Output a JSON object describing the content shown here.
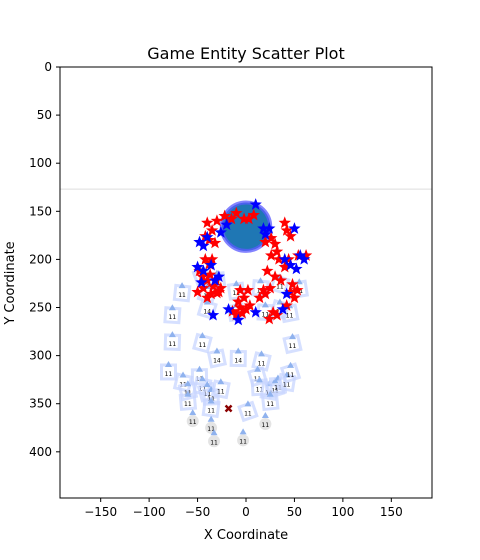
{
  "chart_data": {
    "type": "scatter",
    "title": "Game Entity Scatter Plot",
    "xlabel": "X Coordinate",
    "ylabel": "Y Coordinate",
    "xlim": [
      -192,
      192
    ],
    "ylim": [
      448,
      0
    ],
    "y_inverted": true,
    "grid": false,
    "xticks": [
      -150,
      -100,
      -50,
      0,
      50,
      100,
      150
    ],
    "yticks": [
      0,
      50,
      100,
      150,
      200,
      250,
      300,
      350,
      400
    ],
    "horizontal_reference_line": {
      "y": 127,
      "color": "#dddddd"
    },
    "colors": {
      "red_star": "#ff0000",
      "blue_star": "#0000ff",
      "big_circle_fill": "#1f77b4",
      "big_circle_ring": "#5a5aff",
      "marker": "#8b0000",
      "unit_square": "#c8d6ff",
      "unit_triangle": "#8fb2ee",
      "unit_circle": "#dddddd"
    },
    "big_circle": {
      "x": 0,
      "y": 166,
      "r": 25
    },
    "x_marker": {
      "x": -18,
      "y": 355
    },
    "red_stars": [
      [
        -40,
        162
      ],
      [
        -30,
        160
      ],
      [
        -22,
        155
      ],
      [
        -15,
        158
      ],
      [
        -10,
        152
      ],
      [
        -2,
        158
      ],
      [
        3,
        158
      ],
      [
        8,
        154
      ],
      [
        -35,
        170
      ],
      [
        -42,
        176
      ],
      [
        -38,
        180
      ],
      [
        -32,
        183
      ],
      [
        -48,
        212
      ],
      [
        -45,
        218
      ],
      [
        -40,
        222
      ],
      [
        -37,
        216
      ],
      [
        -34,
        228
      ],
      [
        -31,
        222
      ],
      [
        -28,
        234
      ],
      [
        -44,
        230
      ],
      [
        -50,
        234
      ],
      [
        -36,
        236
      ],
      [
        -26,
        230
      ],
      [
        -40,
        240
      ],
      [
        -35,
        200
      ],
      [
        -38,
        205
      ],
      [
        -30,
        235
      ],
      [
        -42,
        200
      ],
      [
        26,
        178
      ],
      [
        30,
        184
      ],
      [
        20,
        182
      ],
      [
        32,
        192
      ],
      [
        26,
        196
      ],
      [
        34,
        200
      ],
      [
        22,
        212
      ],
      [
        30,
        218
      ],
      [
        36,
        222
      ],
      [
        25,
        230
      ],
      [
        18,
        232
      ],
      [
        14,
        240
      ],
      [
        20,
        236
      ],
      [
        40,
        162
      ],
      [
        42,
        170
      ],
      [
        46,
        176
      ],
      [
        44,
        200
      ],
      [
        40,
        208
      ],
      [
        54,
        196
      ],
      [
        62,
        196
      ],
      [
        48,
        226
      ],
      [
        46,
        234
      ],
      [
        50,
        240
      ],
      [
        53,
        232
      ],
      [
        42,
        248
      ],
      [
        -6,
        232
      ],
      [
        -2,
        240
      ],
      [
        2,
        232
      ],
      [
        -8,
        244
      ],
      [
        -6,
        250
      ],
      [
        -4,
        256
      ],
      [
        0,
        252
      ],
      [
        -10,
        258
      ],
      [
        -14,
        254
      ],
      [
        4,
        248
      ],
      [
        28,
        255
      ],
      [
        32,
        258
      ],
      [
        24,
        262
      ]
    ],
    "blue_stars": [
      [
        -48,
        182
      ],
      [
        -44,
        186
      ],
      [
        -40,
        177
      ],
      [
        -26,
        172
      ],
      [
        -20,
        164
      ],
      [
        10,
        143
      ],
      [
        18,
        168
      ],
      [
        20,
        174
      ],
      [
        24,
        168
      ],
      [
        50,
        168
      ],
      [
        -50,
        208
      ],
      [
        -44,
        212
      ],
      [
        -36,
        206
      ],
      [
        -46,
        224
      ],
      [
        -28,
        218
      ],
      [
        -32,
        222
      ],
      [
        40,
        200
      ],
      [
        46,
        206
      ],
      [
        60,
        200
      ],
      [
        52,
        210
      ],
      [
        56,
        196
      ],
      [
        42,
        236
      ],
      [
        38,
        252
      ],
      [
        10,
        255
      ],
      [
        -34,
        258
      ],
      [
        -18,
        252
      ],
      [
        -8,
        263
      ]
    ],
    "units": [
      {
        "x": -45,
        "y": 218,
        "v": "11"
      },
      {
        "x": -30,
        "y": 222,
        "v": "11"
      },
      {
        "x": -66,
        "y": 235,
        "v": "11"
      },
      {
        "x": -40,
        "y": 236,
        "v": "11"
      },
      {
        "x": -10,
        "y": 233,
        "v": "11"
      },
      {
        "x": 15,
        "y": 230,
        "v": "11"
      },
      {
        "x": 35,
        "y": 226,
        "v": "11"
      },
      {
        "x": 55,
        "y": 231,
        "v": "11"
      },
      {
        "x": -76,
        "y": 258,
        "v": "11"
      },
      {
        "x": -40,
        "y": 252,
        "v": "14"
      },
      {
        "x": -10,
        "y": 255,
        "v": "14"
      },
      {
        "x": 20,
        "y": 255,
        "v": "11"
      },
      {
        "x": 35,
        "y": 252,
        "v": "11"
      },
      {
        "x": 45,
        "y": 256,
        "v": "11"
      },
      {
        "x": -76,
        "y": 286,
        "v": "11"
      },
      {
        "x": -45,
        "y": 287,
        "v": "11"
      },
      {
        "x": -30,
        "y": 303,
        "v": "14"
      },
      {
        "x": -8,
        "y": 303,
        "v": "14"
      },
      {
        "x": 16,
        "y": 306,
        "v": "11"
      },
      {
        "x": 48,
        "y": 288,
        "v": "11"
      },
      {
        "x": -80,
        "y": 317,
        "v": "11"
      },
      {
        "x": -65,
        "y": 328,
        "v": "11"
      },
      {
        "x": -60,
        "y": 337,
        "v": "11"
      },
      {
        "x": -48,
        "y": 322,
        "v": "11"
      },
      {
        "x": -45,
        "y": 332,
        "v": "11"
      },
      {
        "x": -40,
        "y": 338,
        "v": "11"
      },
      {
        "x": -36,
        "y": 343,
        "v": "11"
      },
      {
        "x": -26,
        "y": 335,
        "v": "11"
      },
      {
        "x": 12,
        "y": 322,
        "v": "11"
      },
      {
        "x": 14,
        "y": 333,
        "v": "11"
      },
      {
        "x": 24,
        "y": 337,
        "v": "11"
      },
      {
        "x": 30,
        "y": 334,
        "v": "11"
      },
      {
        "x": 33,
        "y": 331,
        "v": "11"
      },
      {
        "x": 42,
        "y": 328,
        "v": "11"
      },
      {
        "x": 46,
        "y": 318,
        "v": "11"
      },
      {
        "x": -60,
        "y": 348,
        "v": "11"
      },
      {
        "x": -36,
        "y": 355,
        "v": "11"
      },
      {
        "x": 2,
        "y": 358,
        "v": "11"
      },
      {
        "x": 25,
        "y": 348,
        "v": "11"
      },
      {
        "x": -55,
        "y": 367,
        "v": "11"
      },
      {
        "x": -36,
        "y": 374,
        "v": "11"
      },
      {
        "x": -3,
        "y": 387,
        "v": "11"
      },
      {
        "x": 20,
        "y": 370,
        "v": "11"
      },
      {
        "x": -33,
        "y": 388,
        "v": "11"
      }
    ]
  }
}
